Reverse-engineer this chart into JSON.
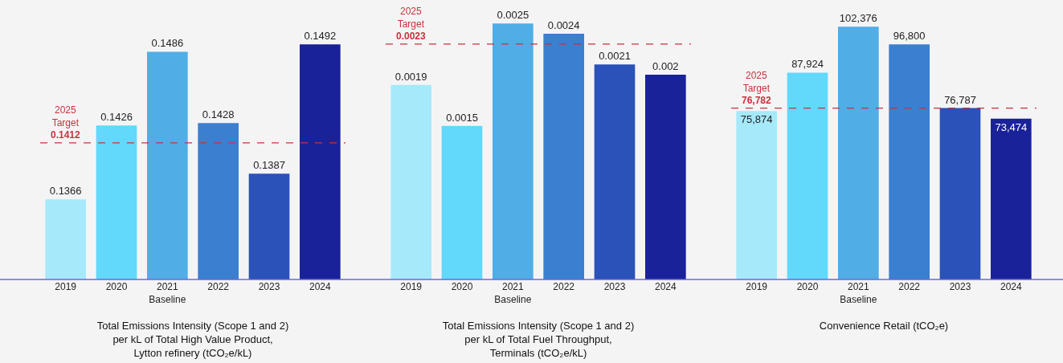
{
  "chart_data": [
    {
      "type": "bar",
      "xlabel": "Total Emissions Intensity (Scope 1 and 2)\nper kL of Total High Value Product,\nLytton refinery (tCO₂e/kL)",
      "categories": [
        "2019",
        "2020",
        "2021\nBaseline",
        "2022",
        "2023",
        "2024"
      ],
      "values": [
        0.1366,
        0.1426,
        0.1486,
        0.1428,
        0.1387,
        0.1492
      ],
      "colors": [
        "#a6e9fb",
        "#62d8fb",
        "#50ade6",
        "#3b7fd0",
        "#2a52b8",
        "#1a2299"
      ],
      "ylim": [
        0.1301,
        0.1528
      ],
      "data_labels": true,
      "tick_labels": "x",
      "grid": false,
      "ref_lines": [
        {
          "axis": "y",
          "value": 0.1412,
          "label": "2025\nTarget\n0.1412",
          "color": "#c8323c",
          "line_style": "dashed"
        }
      ]
    },
    {
      "type": "bar",
      "xlabel": "Total Emissions Intensity (Scope 1 and 2)\nper kL of Total Fuel Throughput,\nTerminals (tCO₂e/kL)",
      "categories": [
        "2019",
        "2020",
        "2021\nBaseline",
        "2022",
        "2023",
        "2024"
      ],
      "values": [
        0.0019,
        0.0015,
        0.0025,
        0.0024,
        0.0021,
        0.002
      ],
      "colors": [
        "#a6e9fb",
        "#62d8fb",
        "#50ade6",
        "#3b7fd0",
        "#2a52b8",
        "#1a2299"
      ],
      "ylim": [
        0,
        0.00273
      ],
      "data_labels": true,
      "tick_labels": "x",
      "grid": false,
      "ref_lines": [
        {
          "axis": "y",
          "value": 0.0023,
          "label": "2025\nTarget\n0.0023",
          "color": "#c8323c",
          "line_style": "dashed"
        }
      ]
    },
    {
      "type": "bar",
      "xlabel": "Convenience Retail (tCO₂e)",
      "categories": [
        "2019",
        "2020",
        "2021\nBaseline",
        "2022",
        "2023",
        "2024"
      ],
      "values": [
        75874,
        87924,
        102376,
        96800,
        76787,
        73474
      ],
      "value_labels": [
        "75,874",
        "87,924",
        "102,376",
        "96,800",
        "76,787",
        "73,474"
      ],
      "colors": [
        "#a6e9fb",
        "#62d8fb",
        "#50ade6",
        "#3b7fd0",
        "#2a52b8",
        "#1a2299"
      ],
      "tick_labels": "x",
      "grid": false,
      "ref_lines": [
        {
          "axis": "y",
          "value": 76782,
          "label": "2025\nTarget\n76,782",
          "color": "#c8323c",
          "line_style": "dashed"
        }
      ]
    }
  ]
}
